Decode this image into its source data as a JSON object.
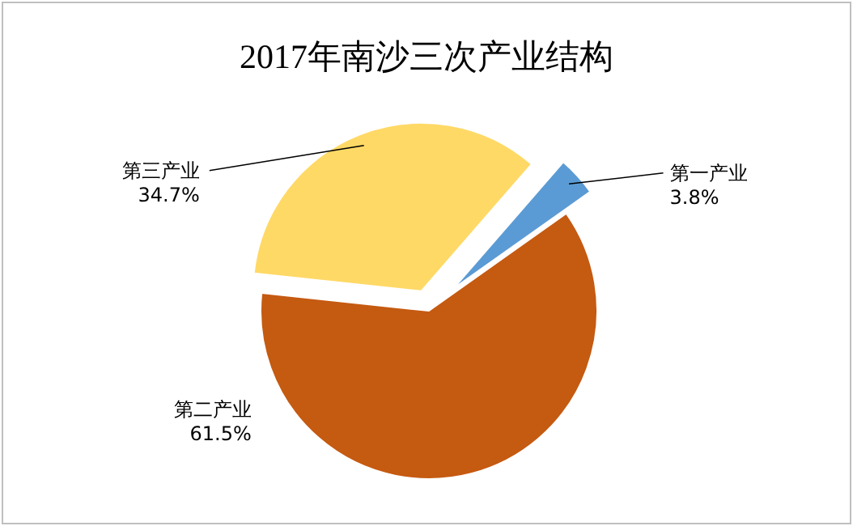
{
  "chart_data": {
    "type": "pie",
    "title": "2017年南沙三次产业结构",
    "categories": [
      "第一产业",
      "第二产业",
      "第三产业"
    ],
    "values": [
      3.8,
      61.5,
      34.7
    ],
    "value_labels": [
      "3.8%",
      "61.5%",
      "34.7%"
    ],
    "colors": [
      "#5b9bd5",
      "#c55a11",
      "#ffd966"
    ]
  }
}
